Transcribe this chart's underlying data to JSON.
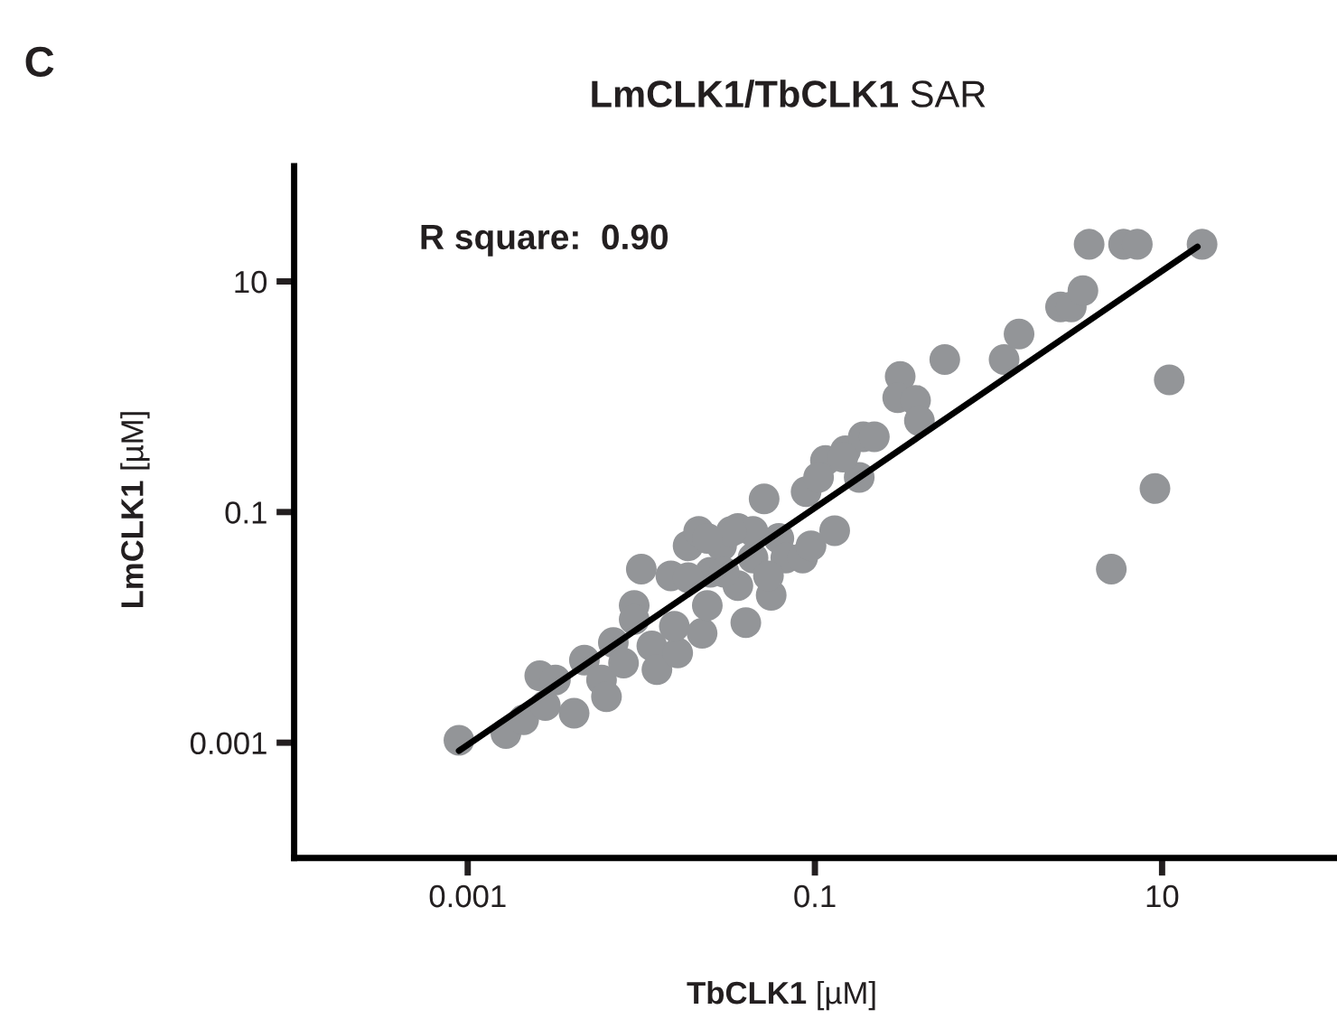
{
  "chart_data": {
    "type": "scatter",
    "title": "LmCLK1/TbCLK1 SAR",
    "xlabel": "TbCLK1 [µM]",
    "ylabel": "LmCLK1 [µM]",
    "annotations": [
      "C",
      "R square:  0.90"
    ],
    "log": "xy",
    "xlim": [
      0.0001,
      100
    ],
    "ylim": [
      0.0001,
      100
    ],
    "xticks": [
      0.001,
      0.1,
      10
    ],
    "yticks": [
      0.001,
      0.1,
      10
    ],
    "grid": false,
    "marker": "circle",
    "series": [
      {
        "color": "#939598",
        "x": [
          0.00089,
          0.00166,
          0.0021,
          0.0026,
          0.0028,
          0.0032,
          0.0041,
          0.0047,
          0.0059,
          0.0063,
          0.0069,
          0.0079,
          0.0091,
          0.01,
          0.0091,
          0.0115,
          0.0123,
          0.0148,
          0.0162,
          0.0155,
          0.0186,
          0.0214,
          0.0224,
          0.024,
          0.025,
          0.029,
          0.036,
          0.036,
          0.04,
          0.044,
          0.051,
          0.056,
          0.062,
          0.068,
          0.085,
          0.089,
          0.095,
          0.115,
          0.13,
          0.15,
          0.18,
          0.19,
          0.22,
          0.31,
          0.3,
          0.38,
          0.4,
          0.56,
          1.23,
          1.5,
          2.6,
          3.0,
          3.5,
          3.8,
          6.0,
          7.2,
          17,
          11,
          9.1,
          5.1,
          0.03,
          0.044,
          0.054,
          0.033,
          0.024,
          0.105,
          0.145,
          0.0186
        ],
        "values": [
          0.00105,
          0.0012,
          0.00158,
          0.0038,
          0.0021,
          0.0035,
          0.0018,
          0.0052,
          0.0035,
          0.0025,
          0.0074,
          0.0049,
          0.0155,
          0.032,
          0.0117,
          0.0069,
          0.0043,
          0.028,
          0.006,
          0.0102,
          0.051,
          0.068,
          0.0089,
          0.0155,
          0.03,
          0.051,
          0.072,
          0.023,
          0.011,
          0.04,
          0.13,
          0.019,
          0.059,
          0.04,
          0.04,
          0.15,
          0.051,
          0.28,
          0.069,
          0.34,
          0.2,
          0.45,
          0.45,
          1.5,
          0.98,
          0.93,
          0.62,
          2.1,
          2.1,
          3.5,
          6.0,
          6.0,
          8.3,
          21,
          21,
          21,
          21,
          1.4,
          0.16,
          0.032,
          0.03,
          0.068,
          0.028,
          0.068,
          0.059,
          0.2,
          0.3,
          0.027
        ]
      },
      {
        "type": "line",
        "color": "#000000",
        "marker": "none",
        "x": [
          0.00089,
          16
        ],
        "values": [
          0.00085,
          20
        ]
      }
    ]
  }
}
